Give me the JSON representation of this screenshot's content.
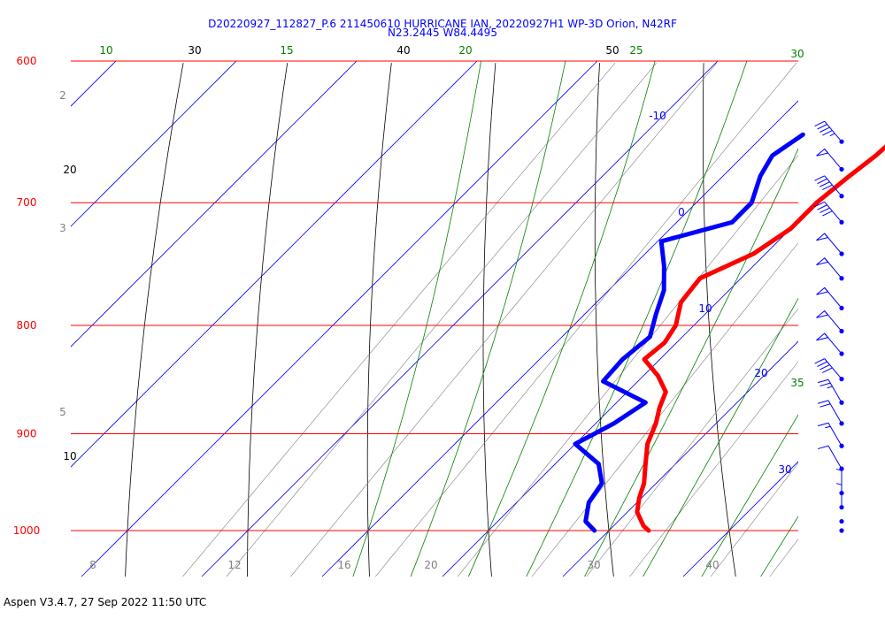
{
  "header": {
    "title_line1": "D20220927_112827_P.6 211450610 HURRICANE IAN, 20220927H1 WP-3D Orion, N42RF",
    "title_line2": "N23.2445 W84.4495"
  },
  "footer": {
    "text": "Aspen V3.4.7, 27 Sep 2022  11:50 UTC"
  },
  "colors": {
    "isobar": "#ff0000",
    "isotherm": "#0000ff",
    "dry_adiabat": "#000000",
    "moist_adiabat": "#008000",
    "mixing_ratio": "#808080",
    "temperature": "#ff0000",
    "dewpoint": "#0000ff",
    "wind_barb": "#0000ff"
  },
  "chart_data": {
    "type": "skew-t",
    "pressure_labels": [
      "600",
      "700",
      "800",
      "900",
      "1000"
    ],
    "isotherm_labels": [
      "-10",
      "0",
      "10",
      "20",
      "30"
    ],
    "dry_adiabat_labels": [
      "30",
      "40",
      "50",
      "20",
      "10"
    ],
    "moist_adiabat_labels": [
      "10",
      "15",
      "20",
      "25",
      "30",
      "35"
    ],
    "mixing_ratio_labels": [
      "2",
      "3",
      "5",
      "8",
      "12",
      "16",
      "20",
      "30",
      "40"
    ],
    "temperature_profile": [
      {
        "p": 650,
        "t": 11.2
      },
      {
        "p": 665,
        "t": 11.0
      },
      {
        "p": 680,
        "t": 10.5
      },
      {
        "p": 700,
        "t": 10.0
      },
      {
        "p": 720,
        "t": 10.0
      },
      {
        "p": 740,
        "t": 9.0
      },
      {
        "p": 760,
        "t": 6.6
      },
      {
        "p": 780,
        "t": 7.0
      },
      {
        "p": 800,
        "t": 8.5
      },
      {
        "p": 815,
        "t": 9.0
      },
      {
        "p": 830,
        "t": 8.7
      },
      {
        "p": 845,
        "t": 11.2
      },
      {
        "p": 860,
        "t": 13.2
      },
      {
        "p": 875,
        "t": 14.0
      },
      {
        "p": 890,
        "t": 15.0
      },
      {
        "p": 910,
        "t": 16.0
      },
      {
        "p": 930,
        "t": 17.5
      },
      {
        "p": 950,
        "t": 19.0
      },
      {
        "p": 965,
        "t": 19.8
      },
      {
        "p": 980,
        "t": 20.8
      },
      {
        "p": 995,
        "t": 22.5
      },
      {
        "p": 1000,
        "t": 23.3
      }
    ],
    "dewpoint_profile": [
      {
        "p": 650,
        "td": 3.2
      },
      {
        "p": 665,
        "td": 2.4
      },
      {
        "p": 680,
        "td": 3.1
      },
      {
        "p": 700,
        "td": 4.6
      },
      {
        "p": 715,
        "td": 4.6
      },
      {
        "p": 730,
        "td": 0.3
      },
      {
        "p": 750,
        "td": 2.6
      },
      {
        "p": 770,
        "td": 4.6
      },
      {
        "p": 790,
        "td": 5.9
      },
      {
        "p": 810,
        "td": 7.3
      },
      {
        "p": 830,
        "td": 6.9
      },
      {
        "p": 850,
        "td": 7.1
      },
      {
        "p": 870,
        "td": 12.4
      },
      {
        "p": 890,
        "td": 11.5
      },
      {
        "p": 910,
        "td": 10.0
      },
      {
        "p": 930,
        "td": 13.6
      },
      {
        "p": 950,
        "td": 15.5
      },
      {
        "p": 970,
        "td": 16.0
      },
      {
        "p": 990,
        "td": 17.3
      },
      {
        "p": 1000,
        "td": 18.8
      }
    ],
    "wind_barbs": [
      {
        "p": 655,
        "dir": 320,
        "kt": 45
      },
      {
        "p": 675,
        "dir": 320,
        "kt": 50
      },
      {
        "p": 695,
        "dir": 320,
        "kt": 40
      },
      {
        "p": 715,
        "dir": 320,
        "kt": 40
      },
      {
        "p": 740,
        "dir": 320,
        "kt": 50
      },
      {
        "p": 760,
        "dir": 320,
        "kt": 50
      },
      {
        "p": 785,
        "dir": 320,
        "kt": 50
      },
      {
        "p": 805,
        "dir": 320,
        "kt": 50
      },
      {
        "p": 825,
        "dir": 320,
        "kt": 50
      },
      {
        "p": 848,
        "dir": 320,
        "kt": 40
      },
      {
        "p": 870,
        "dir": 330,
        "kt": 25
      },
      {
        "p": 890,
        "dir": 330,
        "kt": 20
      },
      {
        "p": 912,
        "dir": 330,
        "kt": 15
      },
      {
        "p": 935,
        "dir": 330,
        "kt": 10
      },
      {
        "p": 960,
        "dir": 0,
        "kt": 5
      },
      {
        "p": 975,
        "dir": 0,
        "kt": 5
      },
      {
        "p": 990,
        "dir": 0,
        "kt": 0
      },
      {
        "p": 1000,
        "dir": 0,
        "kt": 0
      }
    ]
  }
}
